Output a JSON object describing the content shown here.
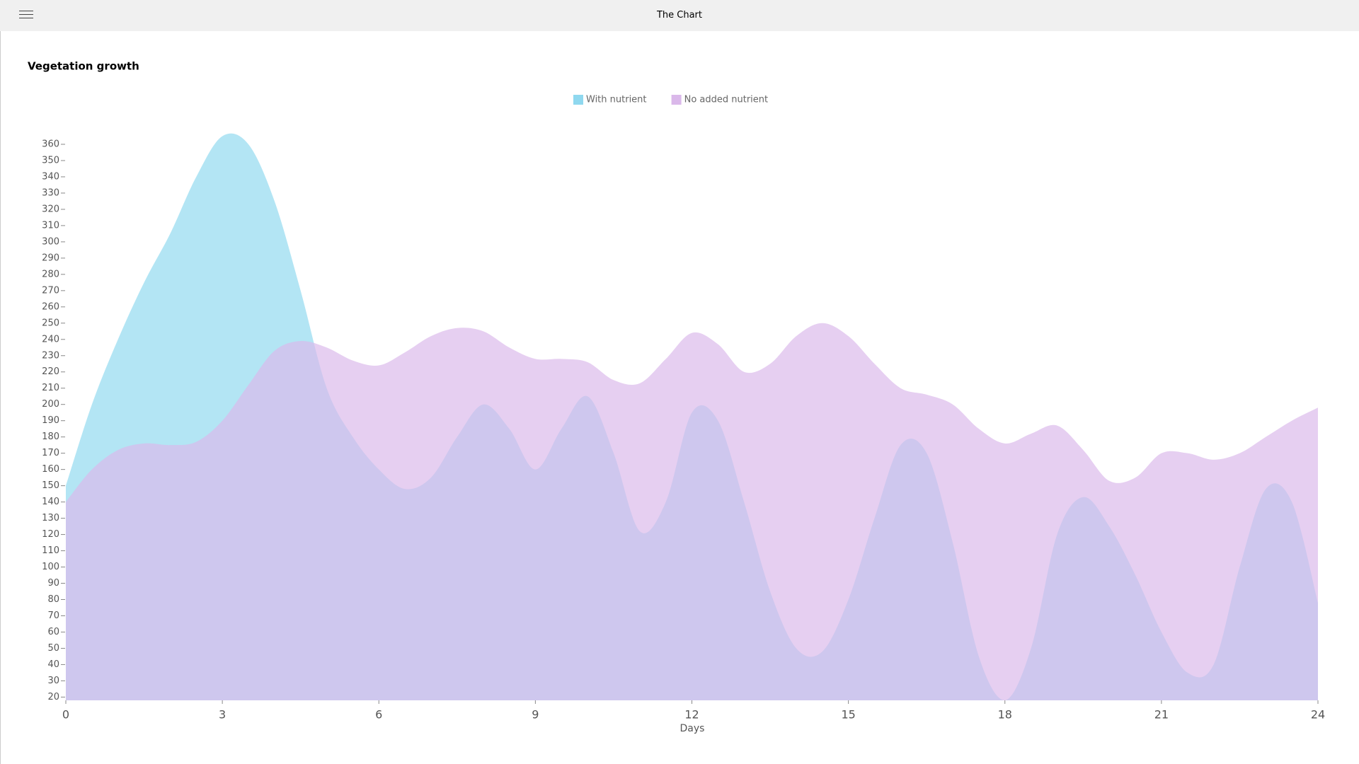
{
  "app_title": "The Chart",
  "chart_data": {
    "type": "area",
    "title": "Vegetation growth",
    "xlabel": "Days",
    "x": [
      0,
      0.5,
      1,
      1.5,
      2,
      2.5,
      3,
      3.5,
      4,
      4.5,
      5,
      5.5,
      6,
      6.5,
      7,
      7.5,
      8,
      8.5,
      9,
      9.5,
      10,
      10.5,
      11,
      11.5,
      12,
      12.5,
      13,
      13.5,
      14,
      14.5,
      15,
      15.5,
      16,
      16.5,
      17,
      17.5,
      18,
      18.5,
      19,
      19.5,
      20,
      20.5,
      21,
      21.5,
      22,
      22.5,
      23,
      23.5,
      24
    ],
    "series": [
      {
        "name": "With nutrient",
        "color": "#8fd8ef",
        "values": [
          150,
          200,
          240,
          275,
          305,
          340,
          365,
          360,
          325,
          270,
          210,
          180,
          160,
          148,
          155,
          180,
          200,
          185,
          160,
          185,
          205,
          170,
          122,
          140,
          195,
          190,
          140,
          85,
          50,
          48,
          80,
          130,
          175,
          170,
          115,
          45,
          18,
          50,
          120,
          143,
          125,
          95,
          60,
          35,
          40,
          100,
          148,
          140,
          78
        ]
      },
      {
        "name": "No added nutrient",
        "color": "#dab8ea",
        "values": [
          140,
          160,
          172,
          176,
          175,
          177,
          190,
          212,
          233,
          239,
          235,
          227,
          224,
          232,
          242,
          247,
          245,
          235,
          228,
          228,
          226,
          215,
          213,
          228,
          244,
          237,
          220,
          225,
          242,
          250,
          242,
          225,
          210,
          206,
          200,
          185,
          176,
          182,
          187,
          172,
          153,
          155,
          170,
          170,
          166,
          170,
          180,
          190,
          198
        ]
      }
    ],
    "xlim": [
      0,
      24
    ],
    "xticks": [
      0,
      3,
      6,
      9,
      12,
      15,
      18,
      21,
      24
    ],
    "ylim": [
      18,
      370
    ],
    "yticks": [
      20,
      30,
      40,
      50,
      60,
      70,
      80,
      90,
      100,
      110,
      120,
      130,
      140,
      150,
      160,
      170,
      180,
      190,
      200,
      210,
      220,
      230,
      240,
      250,
      260,
      270,
      280,
      290,
      300,
      310,
      320,
      330,
      340,
      350,
      360
    ],
    "legend": "top"
  }
}
